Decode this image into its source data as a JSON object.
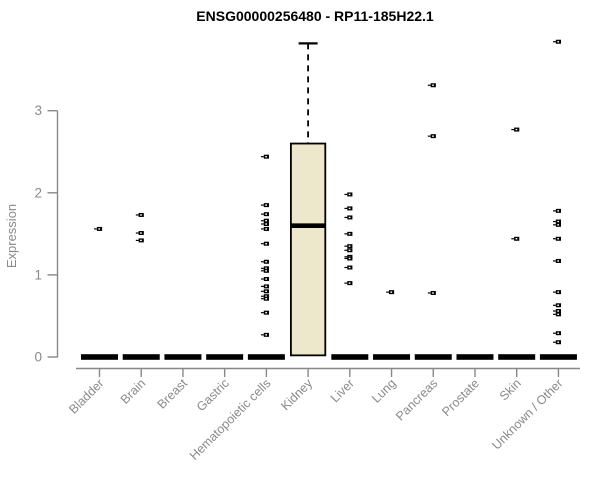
{
  "chart_data": {
    "type": "boxplot",
    "title": "ENSG00000256480 - RP11-185H22.1",
    "ylabel": "Expression",
    "xlabel": "",
    "ylim": [
      0,
      3.95
    ],
    "yticks": [
      0,
      1,
      2,
      3
    ],
    "grid": false,
    "legend": null,
    "box_fill": "#EDE8CC",
    "box_stroke": "#000000",
    "point_color": "#000000",
    "axis_color": "#888888",
    "label_color": "#8a8a8a",
    "categories": [
      "Bladder",
      "Brain",
      "Breast",
      "Gastric",
      "Hematopoietic cells",
      "Kidney",
      "Liver",
      "Lung",
      "Pancreas",
      "Prostate",
      "Skin",
      "Unknown / Other"
    ],
    "series": [
      {
        "category": "Bladder",
        "box": {
          "q1": 0,
          "median": 0,
          "q3": 0,
          "whisker_low": 0,
          "whisker_high": 0
        },
        "points": [
          1.56
        ]
      },
      {
        "category": "Brain",
        "box": {
          "q1": 0,
          "median": 0,
          "q3": 0,
          "whisker_low": 0,
          "whisker_high": 0
        },
        "points": [
          1.73,
          1.51,
          1.42
        ]
      },
      {
        "category": "Breast",
        "box": {
          "q1": 0,
          "median": 0,
          "q3": 0,
          "whisker_low": 0,
          "whisker_high": 0
        },
        "points": []
      },
      {
        "category": "Gastric",
        "box": {
          "q1": 0,
          "median": 0,
          "q3": 0,
          "whisker_low": 0,
          "whisker_high": 0
        },
        "points": []
      },
      {
        "category": "Hematopoietic cells",
        "box": {
          "q1": 0,
          "median": 0,
          "q3": 0,
          "whisker_low": 0,
          "whisker_high": 0
        },
        "points": [
          2.44,
          1.85,
          1.74,
          1.66,
          1.62,
          1.56,
          1.38,
          1.16,
          1.08,
          1.05,
          0.95,
          0.86,
          0.8,
          0.74,
          0.71,
          0.54,
          0.27
        ]
      },
      {
        "category": "Kidney",
        "box": {
          "q1": 0.02,
          "median": 1.6,
          "q3": 2.6,
          "whisker_low": 0.02,
          "whisker_high": 3.82
        },
        "points": []
      },
      {
        "category": "Liver",
        "box": {
          "q1": 0,
          "median": 0,
          "q3": 0,
          "whisker_low": 0,
          "whisker_high": 0
        },
        "points": [
          1.98,
          1.81,
          1.7,
          1.5,
          1.35,
          1.3,
          1.22,
          1.2,
          1.09,
          0.9
        ]
      },
      {
        "category": "Lung",
        "box": {
          "q1": 0,
          "median": 0,
          "q3": 0,
          "whisker_low": 0,
          "whisker_high": 0
        },
        "points": [
          0.79
        ]
      },
      {
        "category": "Pancreas",
        "box": {
          "q1": 0,
          "median": 0,
          "q3": 0,
          "whisker_low": 0,
          "whisker_high": 0
        },
        "points": [
          3.31,
          2.69,
          0.78
        ]
      },
      {
        "category": "Prostate",
        "box": {
          "q1": 0,
          "median": 0,
          "q3": 0,
          "whisker_low": 0,
          "whisker_high": 0
        },
        "points": []
      },
      {
        "category": "Skin",
        "box": {
          "q1": 0,
          "median": 0,
          "q3": 0,
          "whisker_low": 0,
          "whisker_high": 0
        },
        "points": [
          2.77,
          1.44
        ]
      },
      {
        "category": "Unknown / Other",
        "box": {
          "q1": 0,
          "median": 0,
          "q3": 0,
          "whisker_low": 0,
          "whisker_high": 0
        },
        "points": [
          3.84,
          1.78,
          1.65,
          1.61,
          1.44,
          1.17,
          0.79,
          0.63,
          0.56,
          0.52,
          0.29,
          0.18
        ]
      }
    ]
  }
}
